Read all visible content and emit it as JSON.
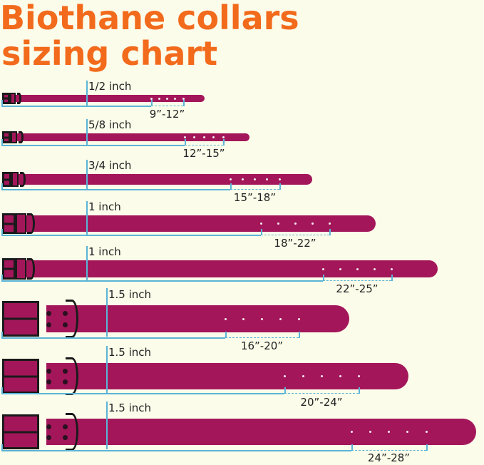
{
  "title": {
    "line1": "Biothane collars",
    "line2": "sizing chart"
  },
  "colors": {
    "title": "#f26a1b",
    "strap": "#a3175a",
    "guide": "#5ab4d6",
    "hardware": "#1a1a1a",
    "background": "#fcfcea"
  },
  "collars": [
    {
      "width_label": "1/2 inch",
      "size_label": "9”-12”",
      "holes": 5
    },
    {
      "width_label": "5/8 inch",
      "size_label": "12”-15”",
      "holes": 5
    },
    {
      "width_label": "3/4 inch",
      "size_label": "15”-18”",
      "holes": 5
    },
    {
      "width_label": "1 inch",
      "size_label": "18”-22”",
      "holes": 5
    },
    {
      "width_label": "1 inch",
      "size_label": "22”-25”",
      "holes": 5
    },
    {
      "width_label": "1.5 inch",
      "size_label": "16”-20”",
      "holes": 5
    },
    {
      "width_label": "1.5 inch",
      "size_label": "20”-24”",
      "holes": 5
    },
    {
      "width_label": "1.5 inch",
      "size_label": "24”-28”",
      "holes": 5
    }
  ]
}
